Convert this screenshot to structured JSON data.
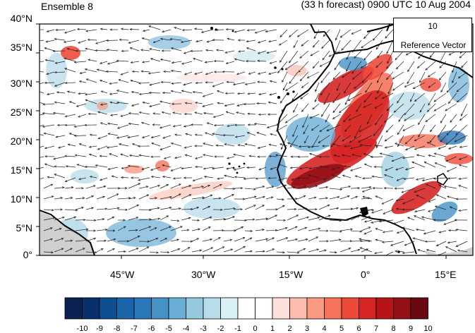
{
  "title": {
    "left": "Ensemble 8",
    "right": "(33 h forecast) 0900 UTC 10 Aug 2004"
  },
  "axes": {
    "lat_labels": [
      "40°N",
      "35°N",
      "30°N",
      "25°N",
      "20°N",
      "15°N",
      "10°N",
      "5°N",
      "0°"
    ],
    "lon_labels": [
      "45°W",
      "30°W",
      "15°W",
      "0°",
      "15°E"
    ]
  },
  "reference_vector": {
    "magnitude": "10",
    "label": "Reference Vector"
  },
  "colorbar": {
    "labels": [
      "-10",
      "-9",
      "-8",
      "-7",
      "-6",
      "-5",
      "-4",
      "-3",
      "-2",
      "-1",
      "0",
      "1",
      "2",
      "3",
      "4",
      "5",
      "6",
      "7",
      "8",
      "9",
      "10"
    ],
    "colors": [
      "#0b2150",
      "#08306b",
      "#0d4f91",
      "#1b65ab",
      "#2a78b8",
      "#4592c7",
      "#6aaed6",
      "#94c9e0",
      "#b6dde9",
      "#d9f0f7",
      "#ffffff",
      "#ffffff",
      "#fde0dc",
      "#fbbcae",
      "#fb9a83",
      "#f6735b",
      "#ee4a3a",
      "#d62524",
      "#b81418",
      "#931016",
      "#6a0a10"
    ]
  },
  "map_style": {
    "land_mask": "#d0d0d0",
    "coastline": "#000000",
    "vector": "#222222"
  }
}
